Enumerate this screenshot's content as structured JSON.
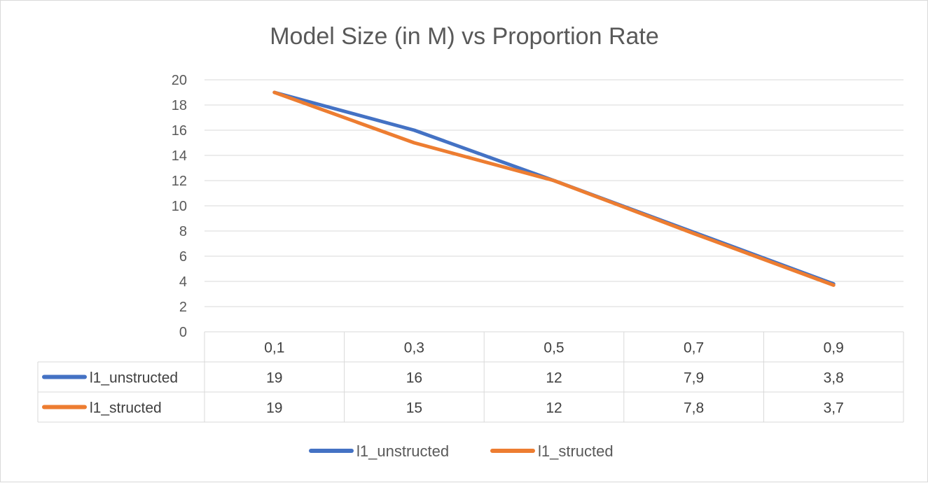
{
  "chart_data": {
    "type": "line",
    "title": "Model Size (in M) vs Proportion Rate",
    "categories": [
      "0,1",
      "0,3",
      "0,5",
      "0,7",
      "0,9"
    ],
    "series": [
      {
        "name": "l1_unstructed",
        "color": "#4472c4",
        "values": [
          19,
          16,
          12,
          7.9,
          3.8
        ],
        "labels": [
          "19",
          "16",
          "12",
          "7,9",
          "3,8"
        ]
      },
      {
        "name": "l1_structed",
        "color": "#ed7d31",
        "values": [
          19,
          15,
          12,
          7.8,
          3.7
        ],
        "labels": [
          "19",
          "15",
          "12",
          "7,8",
          "3,7"
        ]
      }
    ],
    "ylim": [
      0,
      20
    ],
    "yticks": [
      0,
      2,
      4,
      6,
      8,
      10,
      12,
      14,
      16,
      18,
      20
    ],
    "grid": true,
    "data_table": true,
    "legend_position": "bottom"
  }
}
